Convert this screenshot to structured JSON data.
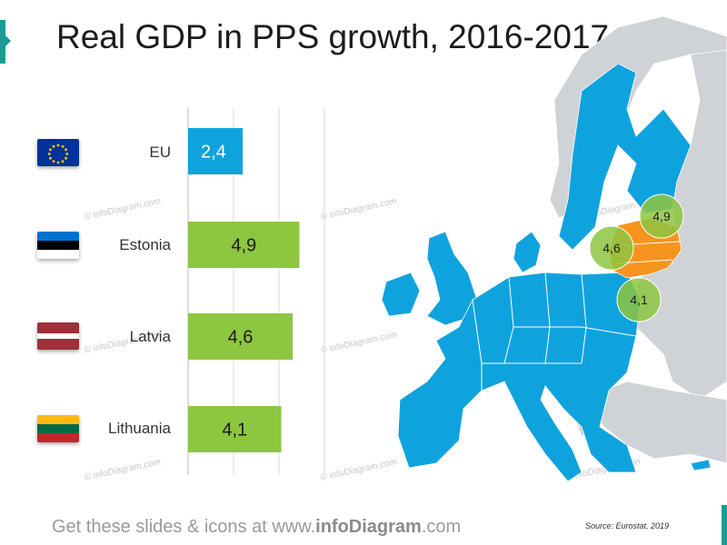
{
  "title": "Real GDP in PPS growth, 2016-2017",
  "colors": {
    "accent": "#1a9c95",
    "eu_bar": "#0fa3de",
    "country_bar": "#8dc63f",
    "map_eu": "#0fa3de",
    "map_baltic": "#f7941d",
    "map_other": "#cfd2d6",
    "bubble": "#8dc63f"
  },
  "chart_data": {
    "type": "bar",
    "orientation": "horizontal",
    "categories": [
      "EU",
      "Estonia",
      "Latvia",
      "Lithuania"
    ],
    "values": [
      2.4,
      4.9,
      4.6,
      4.1
    ],
    "value_labels": [
      "2,4",
      "4,9",
      "4,6",
      "4,1"
    ],
    "bar_colors": [
      "#0fa3de",
      "#8dc63f",
      "#8dc63f",
      "#8dc63f"
    ],
    "xlim": [
      0,
      6
    ],
    "grid": true,
    "title": "Real GDP in PPS growth, 2016-2017"
  },
  "flags": [
    {
      "country": "EU",
      "icon": "eu-flag-icon"
    },
    {
      "country": "Estonia",
      "icon": "estonia-flag-icon"
    },
    {
      "country": "Latvia",
      "icon": "latvia-flag-icon"
    },
    {
      "country": "Lithuania",
      "icon": "lithuania-flag-icon"
    }
  ],
  "map": {
    "bubbles": [
      {
        "label": "4,9",
        "country": "Estonia"
      },
      {
        "label": "4,6",
        "country": "Latvia"
      },
      {
        "label": "4,1",
        "country": "Lithuania"
      }
    ]
  },
  "watermark": "© infoDiagram.com",
  "footer": {
    "prefix": "Get these slides & icons at www.",
    "brand": "infoDiagram",
    "suffix": ".com"
  },
  "source": "Source: Eurostat, 2019"
}
